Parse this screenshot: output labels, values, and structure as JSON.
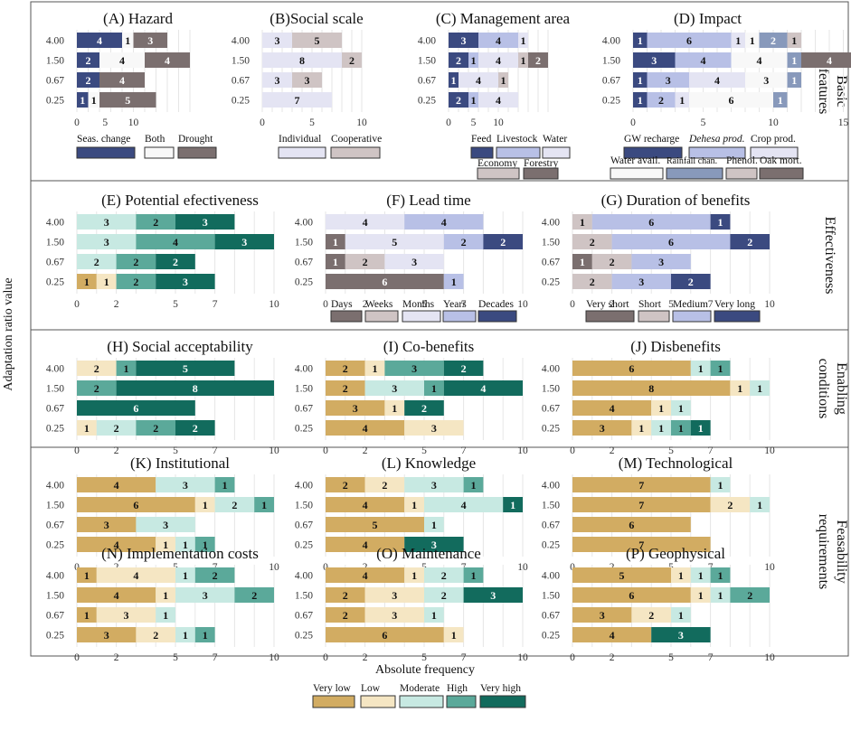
{
  "chart_data": {
    "type": "bar",
    "orientation": "horizontal",
    "stacked": true,
    "xlabel": "Absolute frequency",
    "ylabel": "Adaptation ratio value",
    "row_labels": [
      "4.00",
      "1.50",
      "0.67",
      "0.25"
    ],
    "x_ticks": [
      "0",
      "2",
      "5",
      "7",
      "10"
    ],
    "legend": {
      "items": [
        {
          "label": "Very low",
          "color": "#d2ac62"
        },
        {
          "label": "Low",
          "color": "#f5e6c3"
        },
        {
          "label": "Moderate",
          "color": "#c7e9e2"
        },
        {
          "label": "High",
          "color": "#5ba99a"
        },
        {
          "label": "Very high",
          "color": "#126b5d"
        }
      ]
    },
    "sections": [
      {
        "label_line1": "Basic",
        "label_line2": "features"
      },
      {
        "label_line1": "Effectiveness",
        "label_line2": ""
      },
      {
        "label_line1": "Enabling",
        "label_line2": "conditions"
      },
      {
        "label_line1": "Feasability",
        "label_line2": "requirements"
      }
    ],
    "panels": [
      {
        "title": "(A) Hazard",
        "xmax": 10,
        "ticks": [
          {
            "v": 0,
            "t": "0"
          },
          {
            "v": 2.5,
            "t": "5"
          },
          {
            "v": 5,
            "t": "10"
          }
        ],
        "categories": [
          {
            "name": "Seas. change",
            "color": "#3b4a80",
            "dark": true
          },
          {
            "name": "Both",
            "color": "#f8f8f8",
            "dark": false
          },
          {
            "name": "Drought",
            "color": "#7b6f6f",
            "dark": true
          }
        ],
        "rows": [
          [
            4,
            1,
            3
          ],
          [
            2,
            4,
            4
          ],
          [
            2,
            0,
            4
          ],
          [
            1,
            1,
            5
          ]
        ]
      },
      {
        "title": "(B)Social scale",
        "xmax": 10,
        "ticks": [
          {
            "v": 0,
            "t": "0"
          },
          {
            "v": 5,
            "t": "5"
          },
          {
            "v": 10,
            "t": "10"
          }
        ],
        "categories": [
          {
            "name": "Individual",
            "color": "#e4e4f3",
            "dark": false
          },
          {
            "name": "Cooperative",
            "color": "#cfc4c4",
            "dark": false
          }
        ],
        "rows": [
          [
            3,
            5
          ],
          [
            8,
            2
          ],
          [
            3,
            3
          ],
          [
            7,
            0
          ]
        ]
      },
      {
        "title": "(C) Management area",
        "xmax": 10,
        "ticks": [
          {
            "v": 0,
            "t": "0"
          },
          {
            "v": 2.5,
            "t": "5"
          },
          {
            "v": 5,
            "t": "10"
          }
        ],
        "categories": [
          {
            "name": "Feed",
            "color": "#3b4a80",
            "dark": true
          },
          {
            "name": "Livestock",
            "color": "#b8c0e6",
            "dark": false
          },
          {
            "name": "Water",
            "color": "#e4e4f3",
            "dark": false
          },
          {
            "name": "Economy",
            "color": "#cfc4c4",
            "dark": false
          },
          {
            "name": "Forestry",
            "color": "#7b6f6f",
            "dark": true
          }
        ],
        "rows": [
          [
            3,
            4,
            1,
            0,
            0
          ],
          [
            2,
            1,
            4,
            1,
            2
          ],
          [
            1,
            0,
            4,
            1,
            0
          ],
          [
            2,
            1,
            4,
            0,
            0
          ]
        ]
      },
      {
        "title": "(D) Impact",
        "xmax": 10,
        "ticks": [
          {
            "v": 0,
            "t": "0"
          },
          {
            "v": 5,
            "t": "5"
          },
          {
            "v": 10,
            "t": "10"
          },
          {
            "v": 15,
            "t": "15"
          }
        ],
        "categories": [
          {
            "name": "GW recharge",
            "color": "#3b4a80",
            "dark": true
          },
          {
            "name": "Dehesa prod.",
            "color": "#b8c0e6",
            "dark": false
          },
          {
            "name": "Crop prod.",
            "color": "#e4e4f3",
            "dark": false
          },
          {
            "name": "Water avail.",
            "color": "#f8f8f8",
            "dark": false
          },
          {
            "name": "Rainfall chan.",
            "color": "#8899bb",
            "dark": true
          },
          {
            "name": "Phenol.",
            "color": "#cfc4c4",
            "dark": false
          },
          {
            "name": "Oak mort.",
            "color": "#7b6f6f",
            "dark": true
          }
        ],
        "rows": [
          [
            1,
            6,
            1,
            1,
            2,
            1,
            0
          ],
          [
            3,
            4,
            0,
            4,
            1,
            0,
            4
          ],
          [
            1,
            3,
            4,
            3,
            1,
            0,
            0
          ],
          [
            1,
            2,
            1,
            6,
            1,
            0,
            0
          ]
        ]
      },
      {
        "title": "(E) Potential efectiveness",
        "xmax": 10,
        "ticks": [
          {
            "v": 0,
            "t": "0"
          },
          {
            "v": 2,
            "t": "2"
          },
          {
            "v": 5,
            "t": "5"
          },
          {
            "v": 7,
            "t": "7"
          },
          {
            "v": 10,
            "t": "10"
          }
        ],
        "categories": "effect",
        "rows": [
          [
            0,
            0,
            3,
            2,
            3
          ],
          [
            0,
            0,
            3,
            4,
            3
          ],
          [
            0,
            0,
            2,
            2,
            2
          ],
          [
            1,
            1,
            0,
            2,
            3
          ]
        ]
      },
      {
        "title": "(F) Lead time",
        "xmax": 10,
        "ticks": [
          {
            "v": 0,
            "t": "0"
          },
          {
            "v": 2,
            "t": "2"
          },
          {
            "v": 5,
            "t": "5"
          },
          {
            "v": 7,
            "t": "7"
          },
          {
            "v": 10,
            "t": "10"
          }
        ],
        "categories": [
          {
            "name": "Days",
            "color": "#7b6f6f",
            "dark": true
          },
          {
            "name": "Weeks",
            "color": "#cfc4c4",
            "dark": false
          },
          {
            "name": "Months",
            "color": "#e4e4f3",
            "dark": false
          },
          {
            "name": "Years",
            "color": "#b8c0e6",
            "dark": false
          },
          {
            "name": "Decades",
            "color": "#3b4a80",
            "dark": true
          }
        ],
        "rows": [
          [
            0,
            0,
            4,
            4,
            0
          ],
          [
            1,
            0,
            5,
            2,
            2
          ],
          [
            1,
            2,
            3,
            0,
            0
          ],
          [
            6,
            0,
            0,
            1,
            0
          ]
        ]
      },
      {
        "title": "(G) Duration of benefits",
        "xmax": 10,
        "ticks": [
          {
            "v": 0,
            "t": "0"
          },
          {
            "v": 2,
            "t": "2"
          },
          {
            "v": 5,
            "t": "5"
          },
          {
            "v": 7,
            "t": "7"
          },
          {
            "v": 10,
            "t": "10"
          }
        ],
        "categories": [
          {
            "name": "Very short",
            "color": "#7b6f6f",
            "dark": true
          },
          {
            "name": "Short",
            "color": "#cfc4c4",
            "dark": false
          },
          {
            "name": "Medium",
            "color": "#b8c0e6",
            "dark": false
          },
          {
            "name": "Very long",
            "color": "#3b4a80",
            "dark": true
          }
        ],
        "rows": [
          [
            0,
            1,
            6,
            1
          ],
          [
            0,
            2,
            6,
            2
          ],
          [
            1,
            2,
            3,
            0
          ],
          [
            0,
            2,
            3,
            2
          ]
        ]
      },
      {
        "title": "(H) Social acceptability",
        "xmax": 10,
        "ticks": [
          {
            "v": 0,
            "t": "0"
          },
          {
            "v": 2,
            "t": "2"
          },
          {
            "v": 5,
            "t": "5"
          },
          {
            "v": 7,
            "t": "7"
          },
          {
            "v": 10,
            "t": "10"
          }
        ],
        "categories": "effect",
        "rows": [
          [
            0,
            2,
            0,
            1,
            5
          ],
          [
            0,
            0,
            0,
            2,
            8
          ],
          [
            0,
            0,
            0,
            0,
            6
          ],
          [
            0,
            1,
            2,
            2,
            2
          ]
        ]
      },
      {
        "title": "(I) Co-benefits",
        "xmax": 10,
        "ticks": [
          {
            "v": 0,
            "t": "0"
          },
          {
            "v": 2,
            "t": "2"
          },
          {
            "v": 5,
            "t": "5"
          },
          {
            "v": 7,
            "t": "7"
          },
          {
            "v": 10,
            "t": "10"
          }
        ],
        "categories": "effect",
        "rows": [
          [
            2,
            1,
            0,
            3,
            2
          ],
          [
            2,
            0,
            3,
            1,
            4
          ],
          [
            3,
            1,
            0,
            0,
            2
          ],
          [
            4,
            3,
            0,
            0,
            0
          ]
        ]
      },
      {
        "title": "(J) Disbenefits",
        "xmax": 10,
        "ticks": [
          {
            "v": 0,
            "t": "0"
          },
          {
            "v": 2,
            "t": "2"
          },
          {
            "v": 5,
            "t": "5"
          },
          {
            "v": 7,
            "t": "7"
          },
          {
            "v": 10,
            "t": "10"
          }
        ],
        "categories": "effect",
        "rows": [
          [
            6,
            0,
            1,
            1,
            0
          ],
          [
            8,
            1,
            1,
            0,
            0
          ],
          [
            4,
            1,
            1,
            0,
            0
          ],
          [
            3,
            1,
            1,
            1,
            1
          ]
        ]
      },
      {
        "title": "(K) Institutional",
        "xmax": 10,
        "ticks": [
          {
            "v": 0,
            "t": "0"
          },
          {
            "v": 2,
            "t": "2"
          },
          {
            "v": 5,
            "t": "5"
          },
          {
            "v": 7,
            "t": "7"
          },
          {
            "v": 10,
            "t": "10"
          }
        ],
        "categories": "effect",
        "rows": [
          [
            4,
            0,
            3,
            1,
            0
          ],
          [
            6,
            1,
            2,
            1,
            0
          ],
          [
            3,
            0,
            3,
            0,
            0
          ],
          [
            4,
            1,
            1,
            1,
            0
          ]
        ]
      },
      {
        "title": "(L) Knowledge",
        "xmax": 10,
        "ticks": [
          {
            "v": 0,
            "t": "0"
          },
          {
            "v": 2,
            "t": "2"
          },
          {
            "v": 5,
            "t": "5"
          },
          {
            "v": 7,
            "t": "7"
          },
          {
            "v": 10,
            "t": "10"
          }
        ],
        "categories": "effect",
        "rows": [
          [
            2,
            2,
            3,
            1,
            0
          ],
          [
            4,
            1,
            4,
            0,
            1
          ],
          [
            5,
            0,
            1,
            0,
            0
          ],
          [
            4,
            0,
            0,
            0,
            3
          ]
        ]
      },
      {
        "title": "(M) Technological",
        "xmax": 10,
        "ticks": [
          {
            "v": 0,
            "t": "0"
          },
          {
            "v": 2,
            "t": "2"
          },
          {
            "v": 5,
            "t": "5"
          },
          {
            "v": 7,
            "t": "7"
          },
          {
            "v": 10,
            "t": "10"
          }
        ],
        "categories": "effect",
        "rows": [
          [
            7,
            0,
            1,
            0,
            0
          ],
          [
            7,
            2,
            1,
            0,
            0
          ],
          [
            6,
            0,
            0,
            0,
            0
          ],
          [
            7,
            0,
            0,
            0,
            0
          ]
        ]
      },
      {
        "title": "(N) Implementation costs",
        "xmax": 10,
        "ticks": [
          {
            "v": 0,
            "t": "0"
          },
          {
            "v": 2,
            "t": "2"
          },
          {
            "v": 5,
            "t": "5"
          },
          {
            "v": 7,
            "t": "7"
          },
          {
            "v": 10,
            "t": "10"
          }
        ],
        "categories": "effect",
        "rows": [
          [
            1,
            4,
            1,
            2,
            0
          ],
          [
            4,
            1,
            3,
            2,
            0
          ],
          [
            1,
            3,
            1,
            0,
            0
          ],
          [
            3,
            2,
            1,
            1,
            0
          ]
        ]
      },
      {
        "title": "(O) Maintenance",
        "xmax": 10,
        "ticks": [
          {
            "v": 0,
            "t": "0"
          },
          {
            "v": 2,
            "t": "2"
          },
          {
            "v": 5,
            "t": "5"
          },
          {
            "v": 7,
            "t": "7"
          },
          {
            "v": 10,
            "t": "10"
          }
        ],
        "categories": "effect",
        "rows": [
          [
            4,
            1,
            2,
            1,
            0
          ],
          [
            2,
            3,
            2,
            0,
            3
          ],
          [
            2,
            3,
            1,
            0,
            0
          ],
          [
            6,
            1,
            0,
            0,
            0
          ]
        ]
      },
      {
        "title": "(P) Geophysical",
        "xmax": 10,
        "ticks": [
          {
            "v": 0,
            "t": "0"
          },
          {
            "v": 2,
            "t": "2"
          },
          {
            "v": 5,
            "t": "5"
          },
          {
            "v": 7,
            "t": "7"
          },
          {
            "v": 10,
            "t": "10"
          }
        ],
        "categories": "effect",
        "rows": [
          [
            5,
            1,
            1,
            1,
            0
          ],
          [
            6,
            1,
            1,
            2,
            0
          ],
          [
            3,
            2,
            1,
            0,
            0
          ],
          [
            4,
            0,
            0,
            0,
            3
          ]
        ]
      }
    ]
  }
}
